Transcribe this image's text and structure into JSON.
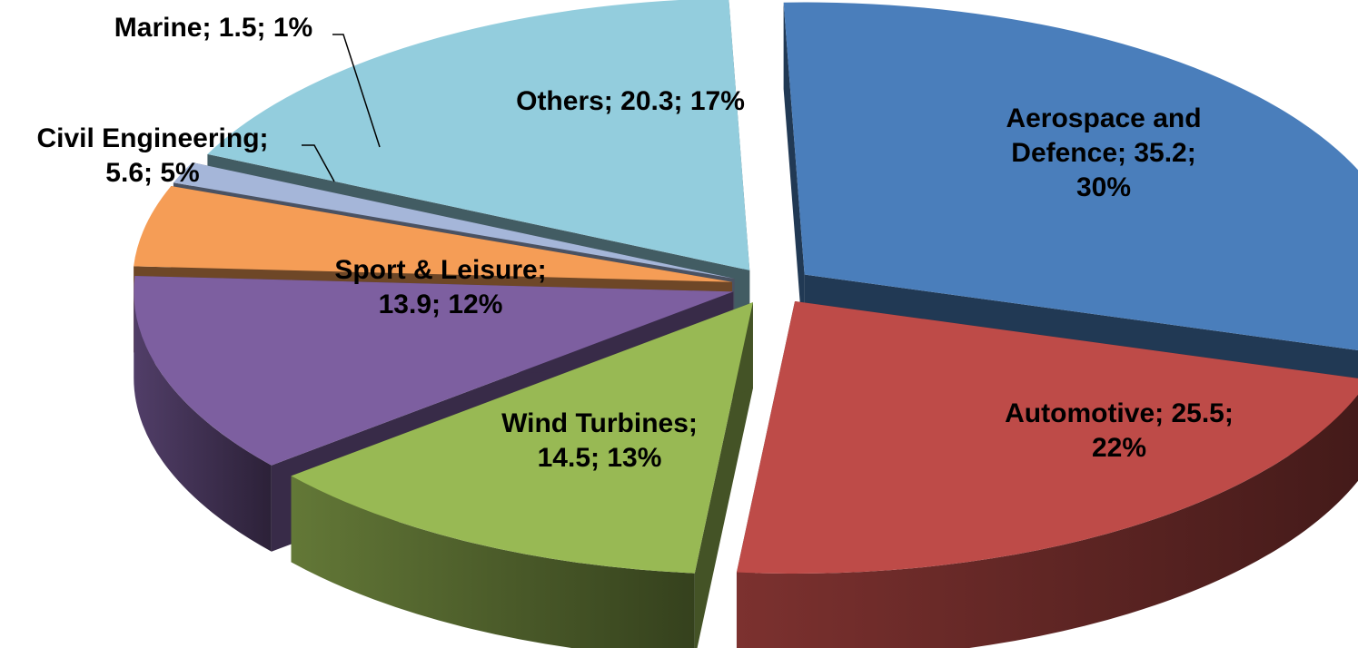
{
  "chart_data": {
    "type": "pie",
    "style": "3d-exploded",
    "legend": "none",
    "slices": [
      {
        "label_lines": [
          "Aerospace and",
          "Defence; 35.2;",
          "30%"
        ],
        "value": 35.2,
        "percent": 30,
        "color": "#4a7ebb"
      },
      {
        "label_lines": [
          "Automotive; 25.5;",
          "22%"
        ],
        "value": 25.5,
        "percent": 22,
        "color": "#be4b48"
      },
      {
        "label_lines": [
          "Wind Turbines;",
          "14.5; 13%"
        ],
        "value": 14.5,
        "percent": 13,
        "color": "#98b954"
      },
      {
        "label_lines": [
          "Sport & Leisure;",
          "13.9; 12%"
        ],
        "value": 13.9,
        "percent": 12,
        "color": "#7d5fa0"
      },
      {
        "label_lines": [
          "Civil Engineering;",
          "5.6; 5%"
        ],
        "value": 5.6,
        "percent": 5,
        "color": "#f59d56"
      },
      {
        "label_lines": [
          "Marine; 1.5; 1%"
        ],
        "value": 1.5,
        "percent": 1,
        "color": "#a5b6d9"
      },
      {
        "label_lines": [
          "Others; 20.3; 17%"
        ],
        "value": 20.3,
        "percent": 17,
        "color": "#93cddd"
      }
    ]
  }
}
